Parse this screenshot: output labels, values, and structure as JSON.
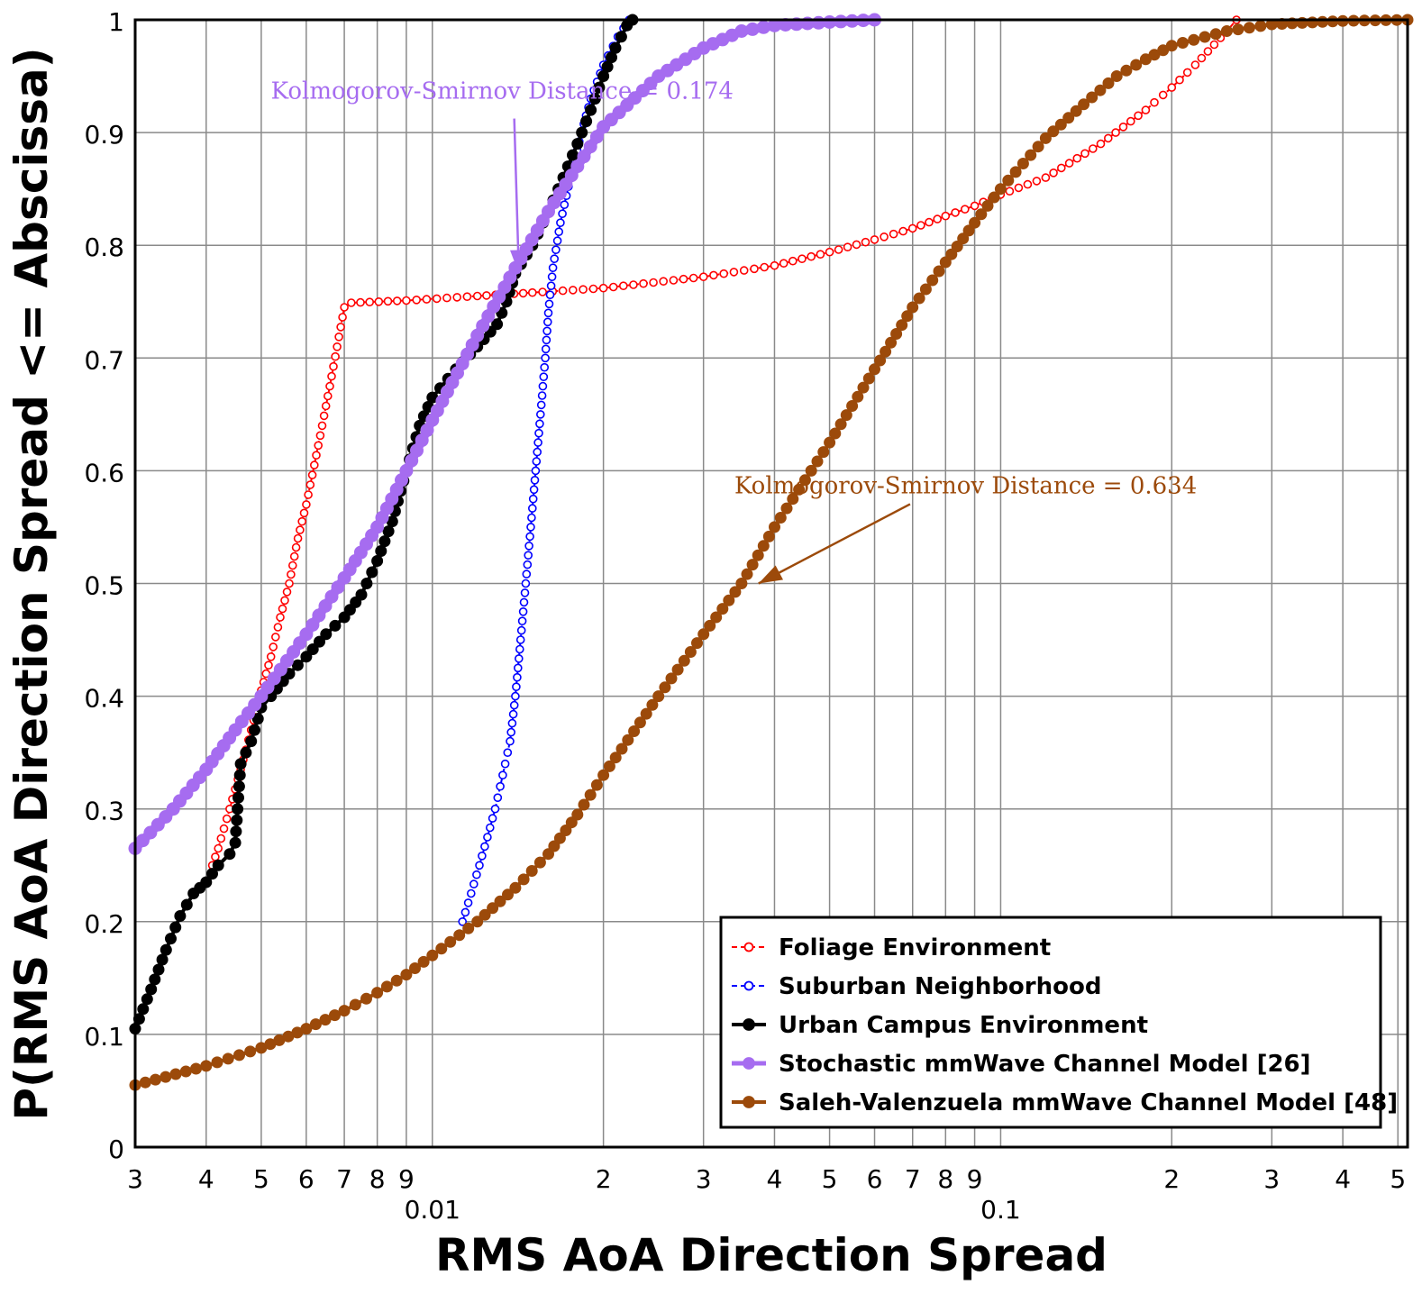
{
  "chart_data": {
    "type": "line",
    "title": "",
    "xlabel": "RMS AoA Direction Spread",
    "ylabel": "P(RMS AoA Direction Spread <= Abscissa)",
    "xscale": "log",
    "xlim": [
      0.003,
      0.52
    ],
    "ylim": [
      0,
      1
    ],
    "grid": true,
    "legend_position": "bottom-right",
    "x_ticks": [
      {
        "value": 0.003,
        "label": "3"
      },
      {
        "value": 0.004,
        "label": "4"
      },
      {
        "value": 0.005,
        "label": "5"
      },
      {
        "value": 0.006,
        "label": "6"
      },
      {
        "value": 0.007,
        "label": "7"
      },
      {
        "value": 0.008,
        "label": "8"
      },
      {
        "value": 0.009,
        "label": "9"
      },
      {
        "value": 0.02,
        "label": "2"
      },
      {
        "value": 0.03,
        "label": "3"
      },
      {
        "value": 0.04,
        "label": "4"
      },
      {
        "value": 0.05,
        "label": "5"
      },
      {
        "value": 0.06,
        "label": "6"
      },
      {
        "value": 0.07,
        "label": "7"
      },
      {
        "value": 0.08,
        "label": "8"
      },
      {
        "value": 0.09,
        "label": "9"
      },
      {
        "value": 0.2,
        "label": "2"
      },
      {
        "value": 0.3,
        "label": "3"
      },
      {
        "value": 0.4,
        "label": "4"
      },
      {
        "value": 0.5,
        "label": "5"
      }
    ],
    "x_decade_labels": [
      {
        "value": 0.01,
        "label": "0.01"
      },
      {
        "value": 0.1,
        "label": "0.1"
      }
    ],
    "y_ticks": [
      {
        "value": 0,
        "label": "0"
      },
      {
        "value": 0.1,
        "label": "0.1"
      },
      {
        "value": 0.2,
        "label": "0.2"
      },
      {
        "value": 0.3,
        "label": "0.3"
      },
      {
        "value": 0.4,
        "label": "0.4"
      },
      {
        "value": 0.5,
        "label": "0.5"
      },
      {
        "value": 0.6,
        "label": "0.6"
      },
      {
        "value": 0.7,
        "label": "0.7"
      },
      {
        "value": 0.8,
        "label": "0.8"
      },
      {
        "value": 0.9,
        "label": "0.9"
      },
      {
        "value": 1,
        "label": "1"
      }
    ],
    "series": [
      {
        "name": "Foliage Environment",
        "color": "#ff0000",
        "style": "dashed-open-circle",
        "points": [
          [
            0.0041,
            0.25
          ],
          [
            0.0042,
            0.265
          ],
          [
            0.0044,
            0.3
          ],
          [
            0.0046,
            0.335
          ],
          [
            0.0048,
            0.37
          ],
          [
            0.005,
            0.405
          ],
          [
            0.0052,
            0.435
          ],
          [
            0.0054,
            0.47
          ],
          [
            0.0056,
            0.5
          ],
          [
            0.0058,
            0.54
          ],
          [
            0.006,
            0.57
          ],
          [
            0.0062,
            0.605
          ],
          [
            0.0064,
            0.64
          ],
          [
            0.0066,
            0.675
          ],
          [
            0.0068,
            0.71
          ],
          [
            0.007,
            0.745
          ],
          [
            0.0072,
            0.749
          ],
          [
            0.009,
            0.751
          ],
          [
            0.012,
            0.755
          ],
          [
            0.015,
            0.758
          ],
          [
            0.02,
            0.762
          ],
          [
            0.03,
            0.772
          ],
          [
            0.04,
            0.782
          ],
          [
            0.05,
            0.794
          ],
          [
            0.06,
            0.805
          ],
          [
            0.07,
            0.815
          ],
          [
            0.08,
            0.826
          ],
          [
            0.09,
            0.835
          ],
          [
            0.1,
            0.845
          ],
          [
            0.12,
            0.86
          ],
          [
            0.15,
            0.89
          ],
          [
            0.18,
            0.92
          ],
          [
            0.2,
            0.94
          ],
          [
            0.22,
            0.96
          ],
          [
            0.25,
            0.99
          ],
          [
            0.26,
            1.0
          ]
        ]
      },
      {
        "name": "Suburban Neighborhood",
        "color": "#0000ff",
        "style": "dashed-open-circle",
        "points": [
          [
            0.0113,
            0.2
          ],
          [
            0.0117,
            0.225
          ],
          [
            0.0121,
            0.25
          ],
          [
            0.0125,
            0.275
          ],
          [
            0.0129,
            0.3
          ],
          [
            0.0133,
            0.33
          ],
          [
            0.0137,
            0.36
          ],
          [
            0.014,
            0.4
          ],
          [
            0.0143,
            0.45
          ],
          [
            0.0146,
            0.5
          ],
          [
            0.0149,
            0.55
          ],
          [
            0.0152,
            0.6
          ],
          [
            0.0155,
            0.65
          ],
          [
            0.0158,
            0.7
          ],
          [
            0.016,
            0.74
          ],
          [
            0.0163,
            0.78
          ],
          [
            0.0168,
            0.82
          ],
          [
            0.0175,
            0.86
          ],
          [
            0.0183,
            0.9
          ],
          [
            0.019,
            0.93
          ],
          [
            0.02,
            0.96
          ],
          [
            0.0212,
            0.985
          ],
          [
            0.0222,
            1.0
          ]
        ]
      },
      {
        "name": "Urban Campus Environment",
        "color": "#000000",
        "style": "solid-filled-circle",
        "points": [
          [
            0.003,
            0.105
          ],
          [
            0.0032,
            0.14
          ],
          [
            0.0034,
            0.175
          ],
          [
            0.0036,
            0.205
          ],
          [
            0.0038,
            0.225
          ],
          [
            0.004,
            0.235
          ],
          [
            0.0042,
            0.25
          ],
          [
            0.0044,
            0.26
          ],
          [
            0.0045,
            0.27
          ],
          [
            0.0046,
            0.34
          ],
          [
            0.0048,
            0.36
          ],
          [
            0.005,
            0.39
          ],
          [
            0.0052,
            0.4
          ],
          [
            0.0056,
            0.42
          ],
          [
            0.006,
            0.435
          ],
          [
            0.0065,
            0.455
          ],
          [
            0.007,
            0.47
          ],
          [
            0.0075,
            0.49
          ],
          [
            0.008,
            0.52
          ],
          [
            0.0085,
            0.555
          ],
          [
            0.009,
            0.6
          ],
          [
            0.0095,
            0.64
          ],
          [
            0.01,
            0.665
          ],
          [
            0.011,
            0.69
          ],
          [
            0.012,
            0.71
          ],
          [
            0.013,
            0.73
          ],
          [
            0.0135,
            0.75
          ],
          [
            0.014,
            0.775
          ],
          [
            0.015,
            0.8
          ],
          [
            0.016,
            0.83
          ],
          [
            0.017,
            0.86
          ],
          [
            0.018,
            0.89
          ],
          [
            0.019,
            0.92
          ],
          [
            0.02,
            0.95
          ],
          [
            0.021,
            0.975
          ],
          [
            0.022,
            0.995
          ],
          [
            0.0225,
            1.0
          ]
        ]
      },
      {
        "name": "Stochastic mmWave Channel Model [26]",
        "color": "#a66cf0",
        "style": "solid-filled-circle-thick",
        "points": [
          [
            0.003,
            0.265
          ],
          [
            0.0035,
            0.3
          ],
          [
            0.004,
            0.335
          ],
          [
            0.0045,
            0.37
          ],
          [
            0.005,
            0.4
          ],
          [
            0.006,
            0.455
          ],
          [
            0.007,
            0.505
          ],
          [
            0.008,
            0.55
          ],
          [
            0.009,
            0.6
          ],
          [
            0.01,
            0.645
          ],
          [
            0.012,
            0.72
          ],
          [
            0.014,
            0.78
          ],
          [
            0.016,
            0.83
          ],
          [
            0.018,
            0.87
          ],
          [
            0.02,
            0.905
          ],
          [
            0.025,
            0.95
          ],
          [
            0.03,
            0.975
          ],
          [
            0.035,
            0.99
          ],
          [
            0.04,
            0.995
          ],
          [
            0.05,
            0.998
          ],
          [
            0.06,
            1.0
          ]
        ]
      },
      {
        "name": "Saleh-Valenzuela mmWave Channel Model [48]",
        "color": "#9c4a0a",
        "style": "solid-filled-circle",
        "points": [
          [
            0.003,
            0.055
          ],
          [
            0.004,
            0.072
          ],
          [
            0.005,
            0.088
          ],
          [
            0.006,
            0.105
          ],
          [
            0.007,
            0.121
          ],
          [
            0.008,
            0.137
          ],
          [
            0.009,
            0.153
          ],
          [
            0.01,
            0.17
          ],
          [
            0.012,
            0.2
          ],
          [
            0.014,
            0.23
          ],
          [
            0.016,
            0.26
          ],
          [
            0.018,
            0.295
          ],
          [
            0.02,
            0.33
          ],
          [
            0.025,
            0.4
          ],
          [
            0.03,
            0.455
          ],
          [
            0.035,
            0.5
          ],
          [
            0.04,
            0.55
          ],
          [
            0.05,
            0.625
          ],
          [
            0.06,
            0.69
          ],
          [
            0.07,
            0.745
          ],
          [
            0.08,
            0.785
          ],
          [
            0.09,
            0.82
          ],
          [
            0.1,
            0.85
          ],
          [
            0.12,
            0.895
          ],
          [
            0.14,
            0.925
          ],
          [
            0.16,
            0.95
          ],
          [
            0.18,
            0.965
          ],
          [
            0.2,
            0.977
          ],
          [
            0.25,
            0.99
          ],
          [
            0.3,
            0.996
          ],
          [
            0.4,
            0.999
          ],
          [
            0.52,
            1.0
          ]
        ]
      }
    ],
    "annotations": [
      {
        "text": "Kolmogorov-Smirnov Distance = 0.174",
        "color": "#a66cf0",
        "text_at": [
          0.0052,
          0.93
        ],
        "arrow_to": [
          0.0142,
          0.775
        ]
      },
      {
        "text": "Kolmogorov-Smirnov Distance = 0.634",
        "color": "#9c4a0a",
        "text_at": [
          0.034,
          0.58
        ],
        "arrow_to": [
          0.0375,
          0.5
        ]
      }
    ]
  }
}
